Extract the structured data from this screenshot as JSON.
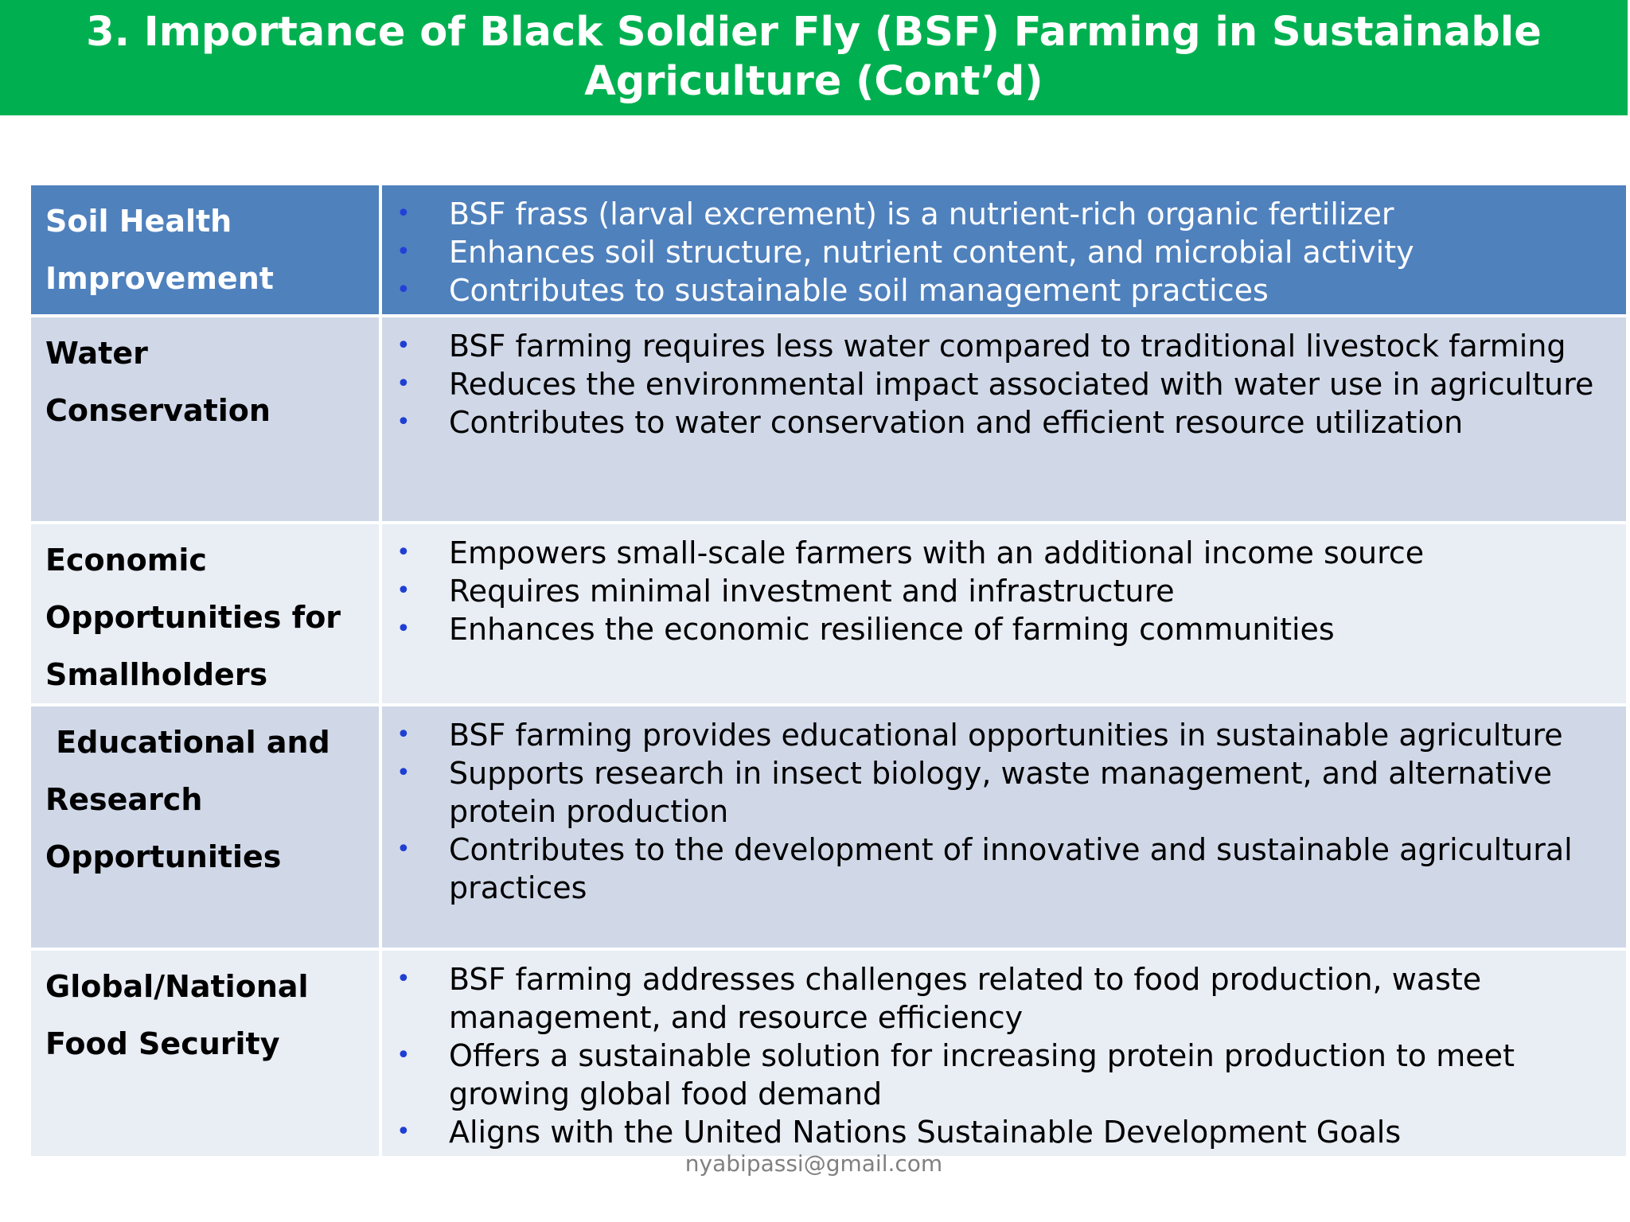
{
  "title": {
    "line1": "3. Importance of Black Soldier Fly (BSF) Farming in Sustainable",
    "line2": "Agriculture (Cont’d)"
  },
  "rows": [
    {
      "category_lines": [
        "Soil Health",
        "Improvement"
      ],
      "bullets": [
        "BSF frass (larval excrement) is a nutrient-rich organic fertilizer",
        "Enhances soil structure, nutrient content, and microbial activity",
        "Contributes to sustainable soil management practices"
      ]
    },
    {
      "category_lines": [
        "Water",
        "Conservation"
      ],
      "bullets": [
        "BSF farming requires less water compared to traditional livestock farming",
        "Reduces the environmental impact associated with water use in agriculture",
        "Contributes to water conservation and efficient resource utilization"
      ]
    },
    {
      "category_lines": [
        "Economic",
        "Opportunities for",
        "Smallholders"
      ],
      "bullets": [
        "Empowers small-scale farmers with an additional income source",
        "Requires minimal investment and infrastructure",
        "Enhances the economic resilience of farming communities"
      ]
    },
    {
      "category_lines": [
        " Educational and",
        "Research",
        "Opportunities"
      ],
      "bullets": [
        "BSF farming provides educational opportunities in sustainable agriculture",
        "Supports research in insect biology, waste management, and alternative protein production",
        "Contributes to the development of innovative and sustainable agricultural practices"
      ]
    },
    {
      "category_lines": [
        "Global/National",
        "Food Security"
      ],
      "bullets": [
        "BSF farming addresses challenges related to food production, waste management, and resource efficiency",
        "Offers a sustainable solution for increasing protein production to meet growing global food demand",
        "Aligns with the United Nations Sustainable Development Goals"
      ]
    }
  ],
  "footer": "nyabipassi@gmail.com",
  "colors": {
    "title_bar": "#00b050",
    "header_row": "#4f81bd",
    "dark_row": "#d0d8e8",
    "light_row": "#e9edf4",
    "bullet": "#1f3fd3"
  }
}
